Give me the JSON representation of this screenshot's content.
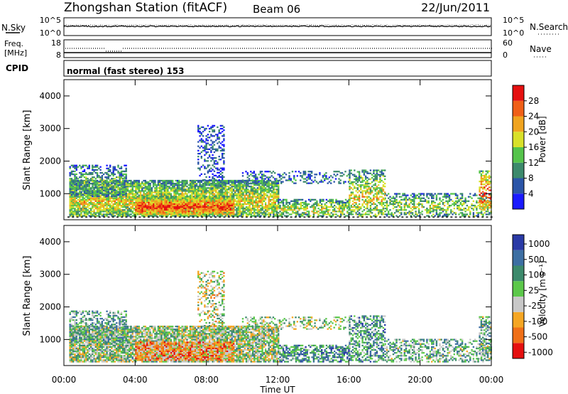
{
  "header": {
    "station": "Zhongshan Station (fitACF)",
    "beam": "Beam 06",
    "date": "22/Jun/2011"
  },
  "status_panels": {
    "nsky": {
      "label": "N.Sky",
      "ticks": [
        "10^5",
        "10^0"
      ]
    },
    "nsearch": {
      "label": "N.Search",
      "ticks": [
        "10^5",
        "10^0"
      ]
    },
    "freq": {
      "label_line1": "Freq.",
      "label_line2": "[MHz]",
      "ticks": [
        "18",
        "8"
      ]
    },
    "nave": {
      "label": "Nave",
      "ticks": [
        "60",
        "0"
      ]
    },
    "cpid": {
      "label": "CPID",
      "value": "normal (fast stereo) 153"
    }
  },
  "colors": {
    "power_scale": [
      "#1a1aff",
      "#2b55a8",
      "#3c8a6c",
      "#55c44b",
      "#d9e12a",
      "#f0a420",
      "#f06018",
      "#e51010"
    ],
    "velocity_scale": [
      "#2a3aa6",
      "#3d6fa3",
      "#3c8a6c",
      "#5cc84a",
      "#c8c8c8",
      "#f5a623",
      "#f07018",
      "#e51010"
    ]
  },
  "chart_data": [
    {
      "type": "heatmap",
      "name": "power",
      "xlabel": "",
      "ylabel": "Slant Range [km]",
      "yticks": [
        "1000",
        "2000",
        "3000",
        "4000"
      ],
      "ylim": [
        200,
        4500
      ],
      "xlim": [
        0,
        24
      ],
      "colorbar_label": "Power [dB]",
      "colorbar_ticks": [
        "4",
        "8",
        "12",
        "16",
        "20",
        "24",
        "28"
      ],
      "colorbar_range": [
        0,
        32
      ]
    },
    {
      "type": "heatmap",
      "name": "velocity",
      "xlabel": "Time UT",
      "ylabel": "Slant Range [km]",
      "yticks": [
        "1000",
        "2000",
        "3000",
        "4000"
      ],
      "ylim": [
        200,
        4500
      ],
      "xlim": [
        0,
        24
      ],
      "xticks": [
        "00:00",
        "04:00",
        "08:00",
        "12:00",
        "16:00",
        "20:00",
        "00:00"
      ],
      "colorbar_label": "Velocity [m s⁻¹]",
      "colorbar_ticks": [
        "1000",
        "500",
        "100",
        "25",
        "-25",
        "-100",
        "-500",
        "-1000"
      ]
    }
  ]
}
